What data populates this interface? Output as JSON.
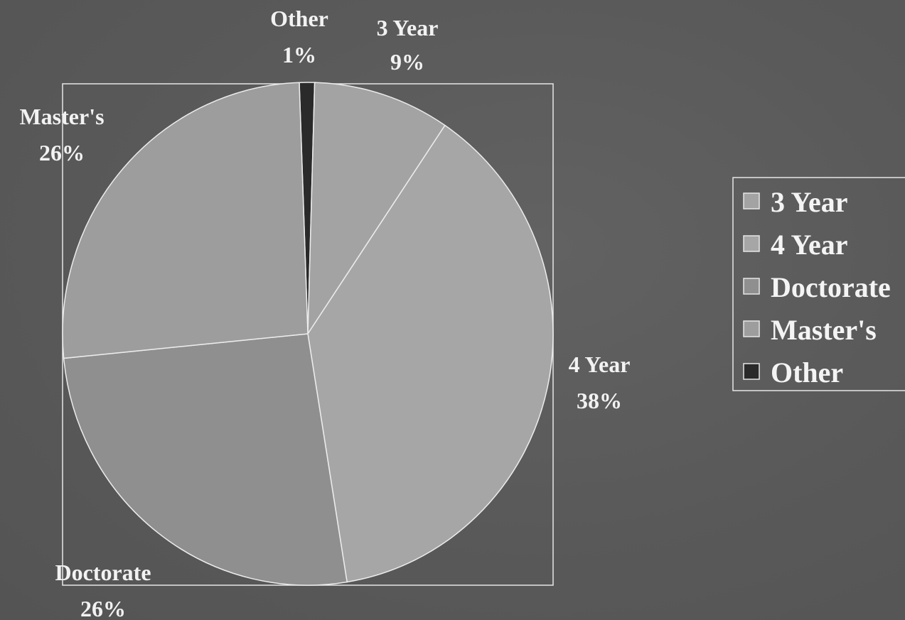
{
  "chart_data": {
    "type": "pie",
    "title": "",
    "slices": [
      {
        "label": "3 Year",
        "value": 9,
        "display": "9%",
        "color": "#a3a3a3"
      },
      {
        "label": "4 Year",
        "value": 38,
        "display": "38%",
        "color": "#a6a6a6"
      },
      {
        "label": "Doctorate",
        "value": 26,
        "display": "26%",
        "color": "#8f8f8f"
      },
      {
        "label": "Master's",
        "value": 26,
        "display": "26%",
        "color": "#9d9d9d"
      },
      {
        "label": "Other",
        "value": 1,
        "display": "1%",
        "color": "#2a2a2a"
      }
    ],
    "legend": {
      "placement": "right",
      "entries": [
        "3 Year",
        "4 Year",
        "Doctorate",
        "Master's",
        "Other"
      ]
    }
  }
}
